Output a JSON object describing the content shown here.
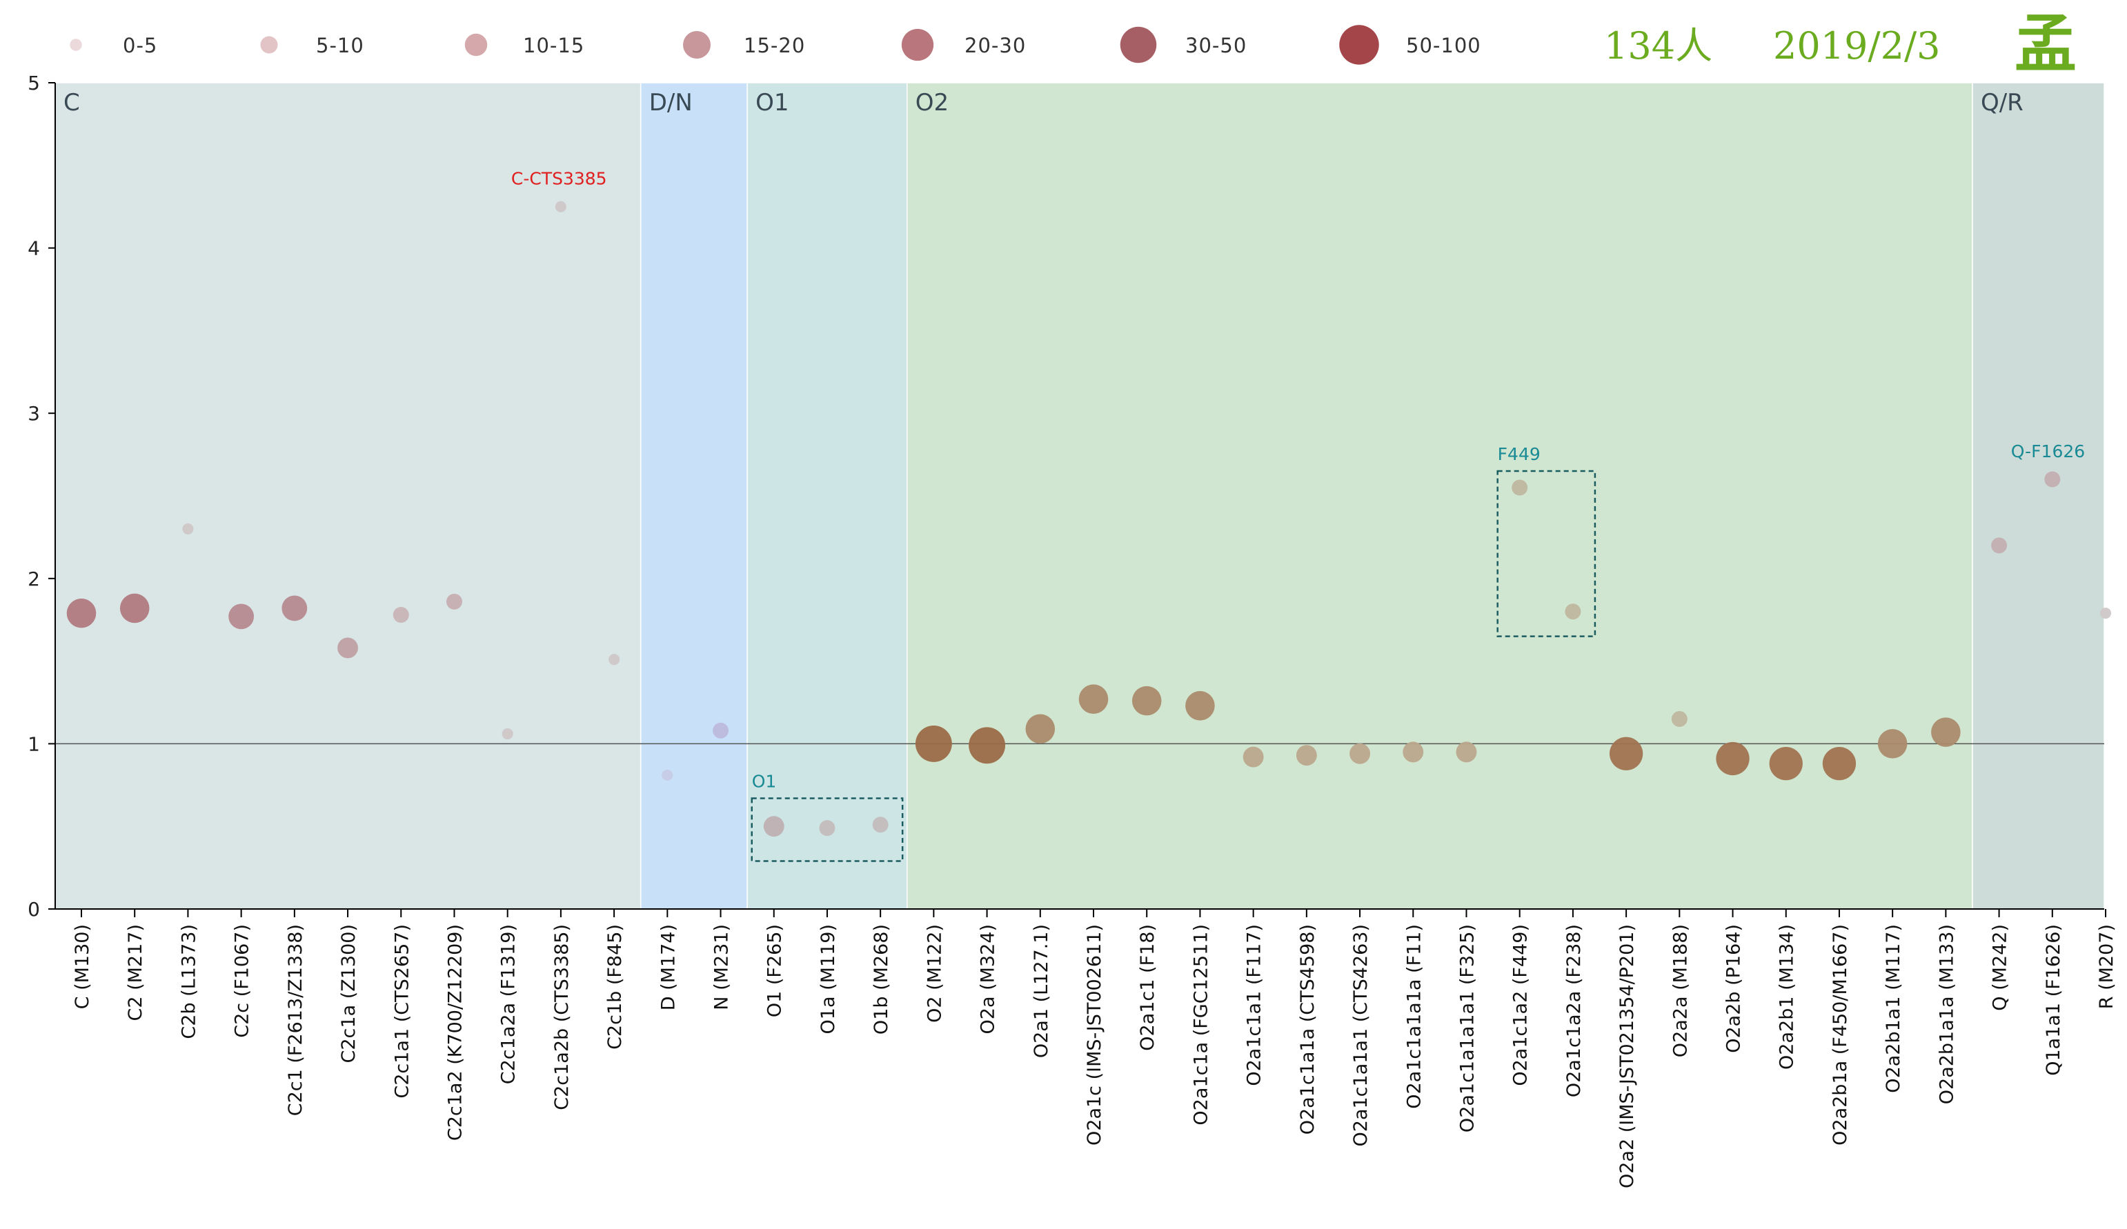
{
  "header": {
    "count_text": "134人",
    "date_text": "2019/2/3",
    "surname": "孟",
    "color": "#6aab1f"
  },
  "legend": [
    {
      "label": "0-5",
      "color": "#ecd9db",
      "r": 7
    },
    {
      "label": "5-10",
      "color": "#e2c3c6",
      "r": 10
    },
    {
      "label": "10-15",
      "color": "#d5a8ac",
      "r": 13
    },
    {
      "label": "15-20",
      "color": "#c8979b",
      "r": 16
    },
    {
      "label": "20-30",
      "color": "#b9767c",
      "r": 18.5
    },
    {
      "label": "30-50",
      "color": "#a65f64",
      "r": 21
    },
    {
      "label": "50-100",
      "color": "#a34549",
      "r": 23
    }
  ],
  "chart_data": {
    "type": "scatter",
    "ylim": [
      0,
      5
    ],
    "yticks": [
      "0",
      "1",
      "2",
      "3",
      "4",
      "5"
    ],
    "reference_line": 1,
    "regions": [
      {
        "label": "C",
        "start": 0,
        "end": 10,
        "color": "#dae5e5"
      },
      {
        "label": "D/N",
        "start": 11,
        "end": 12,
        "color": "#c9e1f8"
      },
      {
        "label": "O1",
        "start": 13,
        "end": 15,
        "color": "#cde5e4"
      },
      {
        "label": "O2",
        "start": 16,
        "end": 35,
        "color": "#d0e6d0"
      },
      {
        "label": "Q/R",
        "start": 36,
        "end": 38,
        "color": "#cedcd9"
      }
    ],
    "points": [
      {
        "x": "C (M130)",
        "y": 1.79,
        "size": "20-30",
        "color": "#b07a80"
      },
      {
        "x": "C2 (M217)",
        "y": 1.82,
        "size": "20-30",
        "color": "#b07a80"
      },
      {
        "x": "C2b (L1373)",
        "y": 2.3,
        "size": "0-5",
        "color": "#cfc7c8"
      },
      {
        "x": "C2c (F1067)",
        "y": 1.77,
        "size": "15-20",
        "color": "#b68a8f"
      },
      {
        "x": "C2c1 (F2613/Z1338)",
        "y": 1.82,
        "size": "15-20",
        "color": "#b68a8f"
      },
      {
        "x": "C2c1a (Z1300)",
        "y": 1.58,
        "size": "10-15",
        "color": "#bfa0a4"
      },
      {
        "x": "C2c1a1 (CTS2657)",
        "y": 1.78,
        "size": "5-10",
        "color": "#c8b4b7"
      },
      {
        "x": "C2c1a2 (K700/Z12209)",
        "y": 1.86,
        "size": "5-10",
        "color": "#c6aeb2"
      },
      {
        "x": "C2c1a2a (F1319)",
        "y": 1.06,
        "size": "0-5",
        "color": "#cfc7c8"
      },
      {
        "x": "C2c1a2b (CTS3385)",
        "y": 4.25,
        "size": "0-5",
        "color": "#cfc7c8"
      },
      {
        "x": "C2c1b (F845)",
        "y": 1.51,
        "size": "0-5",
        "color": "#cfc7c8"
      },
      {
        "x": "D (M174)",
        "y": 0.81,
        "size": "0-5",
        "color": "#c7cbe6"
      },
      {
        "x": "N (M231)",
        "y": 1.08,
        "size": "5-10",
        "color": "#beb9dc"
      },
      {
        "x": "O1 (F265)",
        "y": 0.5,
        "size": "10-15",
        "color": "#bfb0b3"
      },
      {
        "x": "O1a (M119)",
        "y": 0.49,
        "size": "5-10",
        "color": "#c3bcbd"
      },
      {
        "x": "O1b (M268)",
        "y": 0.51,
        "size": "5-10",
        "color": "#c3bcbd"
      },
      {
        "x": "O2 (M122)",
        "y": 1.0,
        "size": "50-100",
        "color": "#9b6b47"
      },
      {
        "x": "O2a (M324)",
        "y": 0.99,
        "size": "50-100",
        "color": "#9b6b47"
      },
      {
        "x": "O2a1 (L127.1)",
        "y": 1.09,
        "size": "20-30",
        "color": "#ab8a6b"
      },
      {
        "x": "O2a1c (IMS-JST002611)",
        "y": 1.27,
        "size": "20-30",
        "color": "#ab8a6b"
      },
      {
        "x": "O2a1c1 (F18)",
        "y": 1.26,
        "size": "20-30",
        "color": "#ab8a6b"
      },
      {
        "x": "O2a1c1a (FGC12511)",
        "y": 1.23,
        "size": "20-30",
        "color": "#ab8a6b"
      },
      {
        "x": "O2a1c1a1 (F117)",
        "y": 0.92,
        "size": "10-15",
        "color": "#baa88c"
      },
      {
        "x": "O2a1c1a1a (CTS4598)",
        "y": 0.93,
        "size": "10-15",
        "color": "#baa88c"
      },
      {
        "x": "O2a1c1a1a1 (CTS4263)",
        "y": 0.94,
        "size": "10-15",
        "color": "#baa88c"
      },
      {
        "x": "O2a1c1a1a1a (F11)",
        "y": 0.95,
        "size": "10-15",
        "color": "#baa88c"
      },
      {
        "x": "O2a1c1a1a1a1 (F325)",
        "y": 0.95,
        "size": "10-15",
        "color": "#baa88c"
      },
      {
        "x": "O2a1c1a2 (F449)",
        "y": 2.55,
        "size": "5-10",
        "color": "#bfb7a0"
      },
      {
        "x": "O2a1c1a2a (F238)",
        "y": 1.8,
        "size": "5-10",
        "color": "#bfb7a0"
      },
      {
        "x": "O2a2 (IMS-JST021354/P201)",
        "y": 0.94,
        "size": "30-50",
        "color": "#a07351"
      },
      {
        "x": "O2a2a (M188)",
        "y": 1.15,
        "size": "5-10",
        "color": "#bfb7a0"
      },
      {
        "x": "O2a2b (P164)",
        "y": 0.91,
        "size": "30-50",
        "color": "#a07351"
      },
      {
        "x": "O2a2b1 (M134)",
        "y": 0.88,
        "size": "30-50",
        "color": "#a07351"
      },
      {
        "x": "O2a2b1a (F450/M1667)",
        "y": 0.88,
        "size": "30-50",
        "color": "#a07351"
      },
      {
        "x": "O2a2b1a1 (M117)",
        "y": 1.0,
        "size": "20-30",
        "color": "#ab8a6b"
      },
      {
        "x": "O2a2b1a1a (M133)",
        "y": 1.07,
        "size": "20-30",
        "color": "#ab8a6b"
      },
      {
        "x": "Q (M242)",
        "y": 2.2,
        "size": "5-10",
        "color": "#c2aeb2"
      },
      {
        "x": "Q1a1a1 (F1626)",
        "y": 2.6,
        "size": "5-10",
        "color": "#c2aeb2"
      },
      {
        "x": "R (M207)",
        "y": 1.79,
        "size": "0-5",
        "color": "#cfc7c8"
      }
    ],
    "annotations": [
      {
        "text": "C-CTS3385",
        "x": 9,
        "y": 4.25,
        "color": "#e02020"
      },
      {
        "text": "O1",
        "x": 13,
        "y": 0.5,
        "color": "#1a8a95"
      },
      {
        "text": "F449",
        "x": 27,
        "y": 2.55,
        "color": "#1a8a95"
      },
      {
        "text": "Q-F1626",
        "x": 37,
        "y": 2.6,
        "color": "#1a8a95"
      }
    ],
    "boxes": [
      {
        "x_from": 13,
        "x_to": 15,
        "y_from": 0.29,
        "y_to": 0.67,
        "color": "#1a5c60"
      },
      {
        "x_from": 27,
        "x_to": 28,
        "y_from": 1.65,
        "y_to": 2.65,
        "color": "#1a5c60"
      }
    ]
  }
}
